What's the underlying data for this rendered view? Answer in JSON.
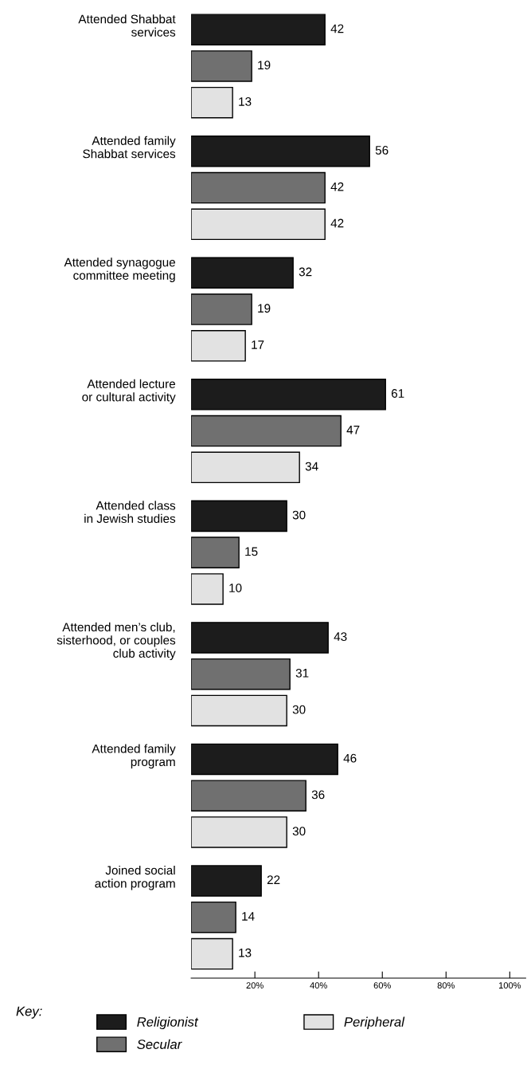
{
  "chart_data": {
    "type": "bar",
    "orientation": "horizontal",
    "legend_title": "Key:",
    "legend": "bottom",
    "categories": [
      "Attended Shabbat\nservices",
      "Attended family\nShabbat services",
      "Attended synagogue\ncommittee meeting",
      "Attended lecture\nor cultural activity",
      "Attended class\nin Jewish studies",
      "Attended men’s club,\nsisterhood, or couples\nclub activity",
      "Attended family\nprogram",
      "Joined social\naction program"
    ],
    "series": [
      {
        "name": "Religionist",
        "color": "#1c1c1c",
        "values": [
          42,
          56,
          32,
          61,
          30,
          43,
          46,
          22
        ]
      },
      {
        "name": "Secular",
        "color": "#707070",
        "values": [
          19,
          42,
          19,
          47,
          15,
          31,
          36,
          14
        ]
      },
      {
        "name": "Peripheral",
        "color": "#e2e2e2",
        "values": [
          13,
          42,
          17,
          34,
          10,
          30,
          30,
          13
        ]
      }
    ],
    "xlim": [
      0,
      105
    ],
    "xticks": [
      {
        "value": 20,
        "label": "20%"
      },
      {
        "value": 40,
        "label": "40%"
      },
      {
        "value": 60,
        "label": "60%"
      },
      {
        "value": 80,
        "label": "80%"
      },
      {
        "value": 100,
        "label": "100%"
      }
    ],
    "data_labels": true,
    "grid": false
  }
}
